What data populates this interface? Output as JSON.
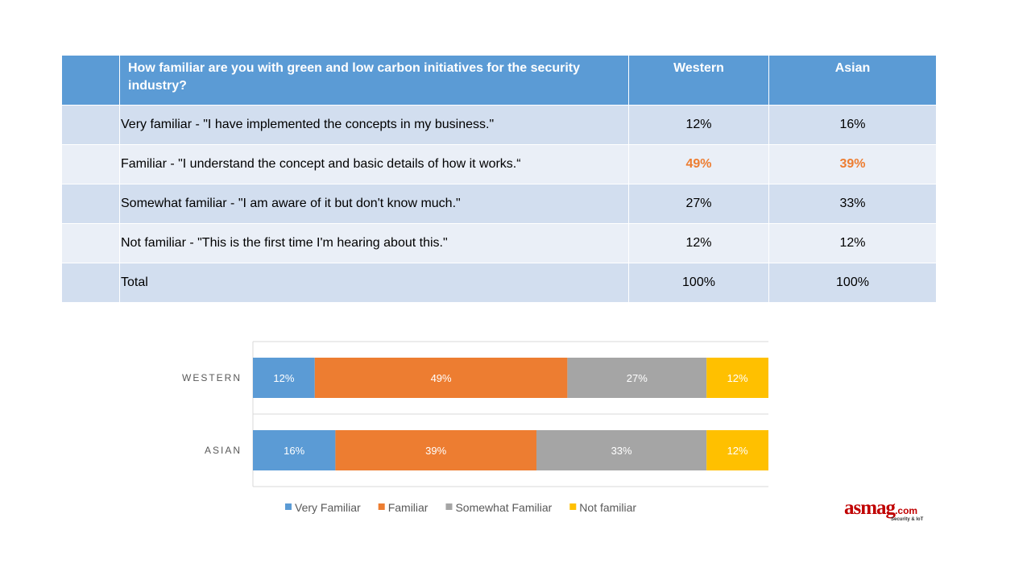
{
  "table": {
    "header": {
      "question": "How familiar are you with green and low carbon initiatives for the security industry?",
      "col_western": "Western",
      "col_asian": "Asian"
    },
    "rows": [
      {
        "label": "Very familiar - \"I have implemented the concepts in my business.\"",
        "western": "12%",
        "asian": "16%"
      },
      {
        "label": "Familiar - \"I understand the concept and basic details of how it works.“",
        "western": "49%",
        "asian": "39%"
      },
      {
        "label": "Somewhat familiar - \"I am aware of it but don't know much.\"",
        "western": "27%",
        "asian": "33%"
      },
      {
        "label": "Not familiar - \"This is the first time I'm hearing about this.\"",
        "western": "12%",
        "asian": "12%"
      },
      {
        "label": "Total",
        "western": "100%",
        "asian": "100%"
      }
    ],
    "highlight_color": "#ed7d31"
  },
  "chart_data": {
    "type": "bar",
    "orientation": "horizontal",
    "stacked": true,
    "categories": [
      "WESTERN",
      "ASIAN"
    ],
    "series": [
      {
        "name": "Very Familiar",
        "values": [
          12,
          16
        ],
        "color": "#5b9bd5"
      },
      {
        "name": "Familiar",
        "values": [
          49,
          39
        ],
        "color": "#ed7d31"
      },
      {
        "name": "Somewhat Familiar",
        "values": [
          27,
          33
        ],
        "color": "#a5a5a5"
      },
      {
        "name": "Not familiar",
        "values": [
          12,
          12
        ],
        "color": "#ffc000"
      }
    ],
    "xlim": [
      0,
      100
    ],
    "value_suffix": "%",
    "legend_position": "bottom",
    "grid": false
  },
  "logo": {
    "brand": "asmag",
    "suffix": ".com",
    "tagline": "Security & IoT"
  }
}
